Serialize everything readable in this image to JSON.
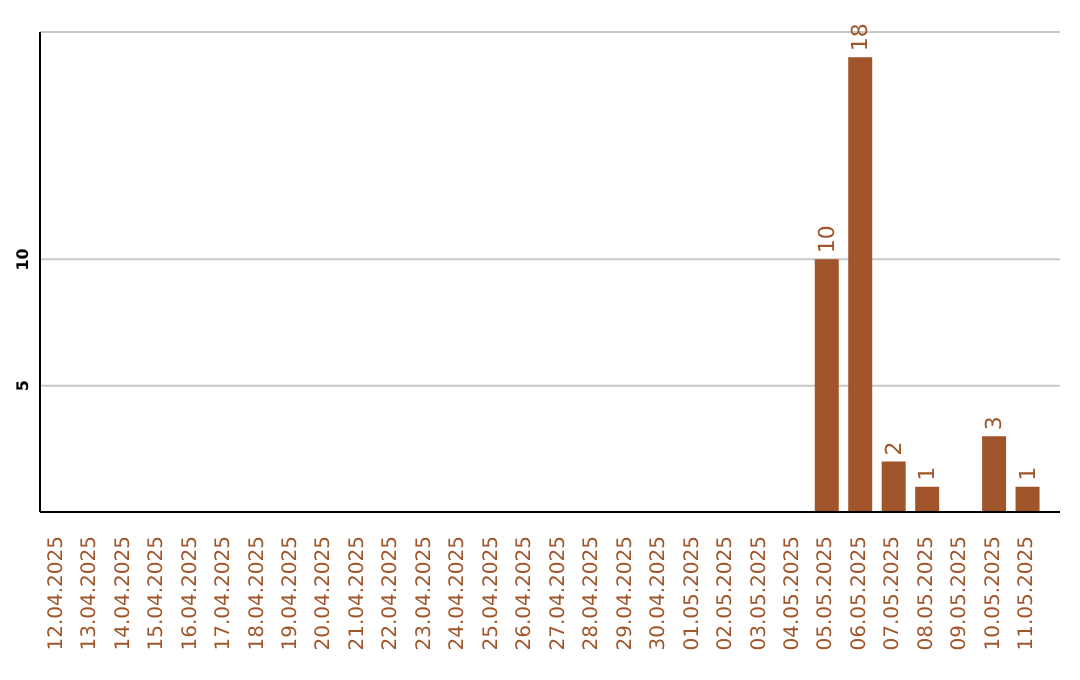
{
  "chart_data": {
    "type": "bar",
    "categories": [
      "12.04.2025",
      "13.04.2025",
      "14.04.2025",
      "15.04.2025",
      "16.04.2025",
      "17.04.2025",
      "18.04.2025",
      "19.04.2025",
      "20.04.2025",
      "21.04.2025",
      "22.04.2025",
      "23.04.2025",
      "24.04.2025",
      "25.04.2025",
      "26.04.2025",
      "27.04.2025",
      "28.04.2025",
      "29.04.2025",
      "30.04.2025",
      "01.05.2025",
      "02.05.2025",
      "03.05.2025",
      "04.05.2025",
      "05.05.2025",
      "06.05.2025",
      "07.05.2025",
      "08.05.2025",
      "09.05.2025",
      "10.05.2025",
      "11.05.2025"
    ],
    "values": [
      0,
      0,
      0,
      0,
      0,
      0,
      0,
      0,
      0,
      0,
      0,
      0,
      0,
      0,
      0,
      0,
      0,
      0,
      0,
      0,
      0,
      0,
      0,
      10,
      18,
      2,
      1,
      0,
      3,
      1
    ],
    "value_labels": [
      null,
      null,
      null,
      null,
      null,
      null,
      null,
      null,
      null,
      null,
      null,
      null,
      null,
      null,
      null,
      null,
      null,
      null,
      null,
      null,
      null,
      null,
      null,
      "10",
      "18",
      "2",
      "1",
      null,
      "3",
      "1"
    ],
    "color": "#a0562a",
    "ylim": [
      0,
      19
    ],
    "yticks": [
      5,
      10
    ],
    "grid": "y"
  }
}
